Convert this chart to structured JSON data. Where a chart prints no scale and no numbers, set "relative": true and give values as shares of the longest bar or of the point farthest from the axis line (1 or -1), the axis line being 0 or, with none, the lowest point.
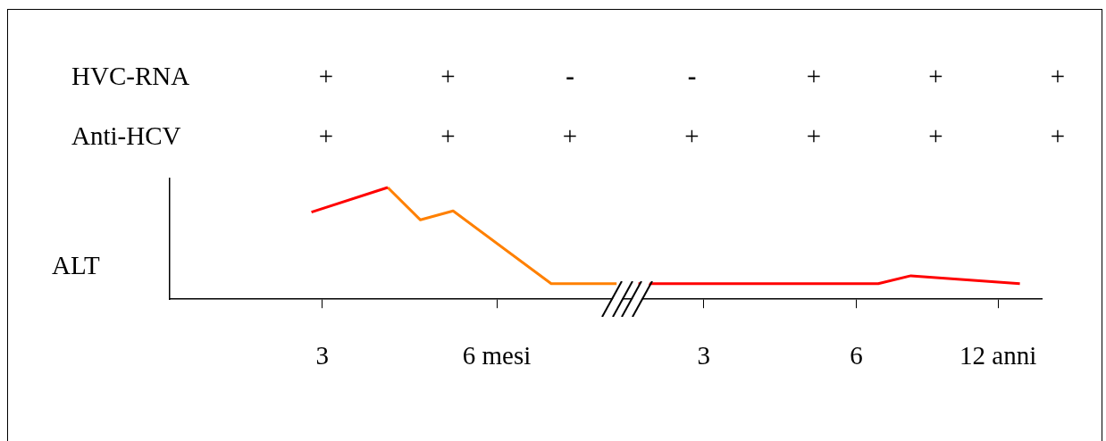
{
  "chart_data": {
    "type": "line",
    "relative": true,
    "ylabel": "ALT",
    "categories": [
      null,
      null,
      null,
      null,
      null,
      null,
      null,
      null,
      null,
      null,
      null,
      null,
      null,
      null,
      "3",
      null,
      null,
      null,
      null,
      null,
      null,
      null,
      null,
      null,
      null,
      null,
      null,
      null,
      null,
      null,
      "6 mesi",
      null,
      null,
      null,
      null,
      null,
      null,
      null,
      null,
      null,
      null,
      null,
      null,
      null,
      null,
      null,
      null,
      null,
      null,
      "3",
      null,
      null,
      null,
      null,
      null,
      null,
      null,
      null,
      null,
      null,
      null,
      null,
      null,
      "6",
      null,
      null,
      null,
      null,
      null,
      null,
      null,
      null,
      null,
      null,
      null,
      null,
      "12 anni",
      null,
      null,
      null,
      null
    ],
    "series": [
      {
        "color": "#ff0000",
        "values": [
          null,
          null,
          null,
          null,
          null,
          null,
          null,
          null,
          null,
          null,
          null,
          null,
          null,
          0.78,
          null,
          null,
          null,
          null,
          null,
          null,
          1,
          null,
          null,
          null,
          null,
          null,
          null,
          null,
          null,
          null,
          null,
          null,
          null,
          null,
          null,
          null,
          null,
          null,
          null,
          null,
          null,
          null,
          null,
          null,
          null,
          null,
          null,
          null,
          null,
          null,
          null,
          null,
          null,
          null,
          null,
          null,
          null,
          null,
          null,
          null,
          null,
          null,
          null,
          null,
          null,
          null,
          null,
          null,
          null,
          null,
          null,
          null,
          null,
          null,
          null,
          null,
          null,
          null,
          null,
          null,
          null
        ]
      },
      {
        "color": "#ff8000",
        "values": [
          null,
          null,
          null,
          null,
          null,
          null,
          null,
          null,
          null,
          null,
          null,
          null,
          null,
          null,
          null,
          null,
          null,
          null,
          null,
          null,
          1,
          null,
          null,
          0.71,
          null,
          null,
          0.79,
          null,
          null,
          null,
          null,
          null,
          null,
          null,
          null,
          0.14,
          null,
          null,
          null,
          null,
          null,
          0.14,
          null,
          null,
          null,
          null,
          null,
          null,
          null,
          null,
          null,
          null,
          null,
          null,
          null,
          null,
          null,
          null,
          null,
          null,
          null,
          null,
          null,
          null,
          null,
          null,
          null,
          null,
          null,
          null,
          null,
          null,
          null,
          null,
          null,
          null,
          null,
          null,
          null,
          null,
          null
        ]
      },
      {
        "color": "#ff0000",
        "values": [
          null,
          null,
          null,
          null,
          null,
          null,
          null,
          null,
          null,
          null,
          null,
          null,
          null,
          null,
          null,
          null,
          null,
          null,
          null,
          null,
          null,
          null,
          null,
          null,
          null,
          null,
          null,
          null,
          null,
          null,
          null,
          null,
          null,
          null,
          null,
          null,
          null,
          null,
          null,
          null,
          null,
          null,
          null,
          0.14,
          null,
          null,
          null,
          null,
          null,
          null,
          null,
          null,
          null,
          null,
          null,
          null,
          null,
          null,
          null,
          null,
          null,
          null,
          null,
          null,
          null,
          0.14,
          null,
          null,
          0.21,
          null,
          null,
          null,
          null,
          null,
          null,
          null,
          null,
          null,
          0.14,
          null,
          null
        ]
      }
    ],
    "annotations": [
      "HVC-RNA",
      "+",
      "+",
      "-",
      "-",
      "+",
      "+",
      "+",
      "Anti-HCV",
      "+",
      "+",
      "+",
      "+",
      "+",
      "+",
      "+"
    ],
    "grid": false,
    "legend": false,
    "marker": "none",
    "line_style": "solid"
  }
}
